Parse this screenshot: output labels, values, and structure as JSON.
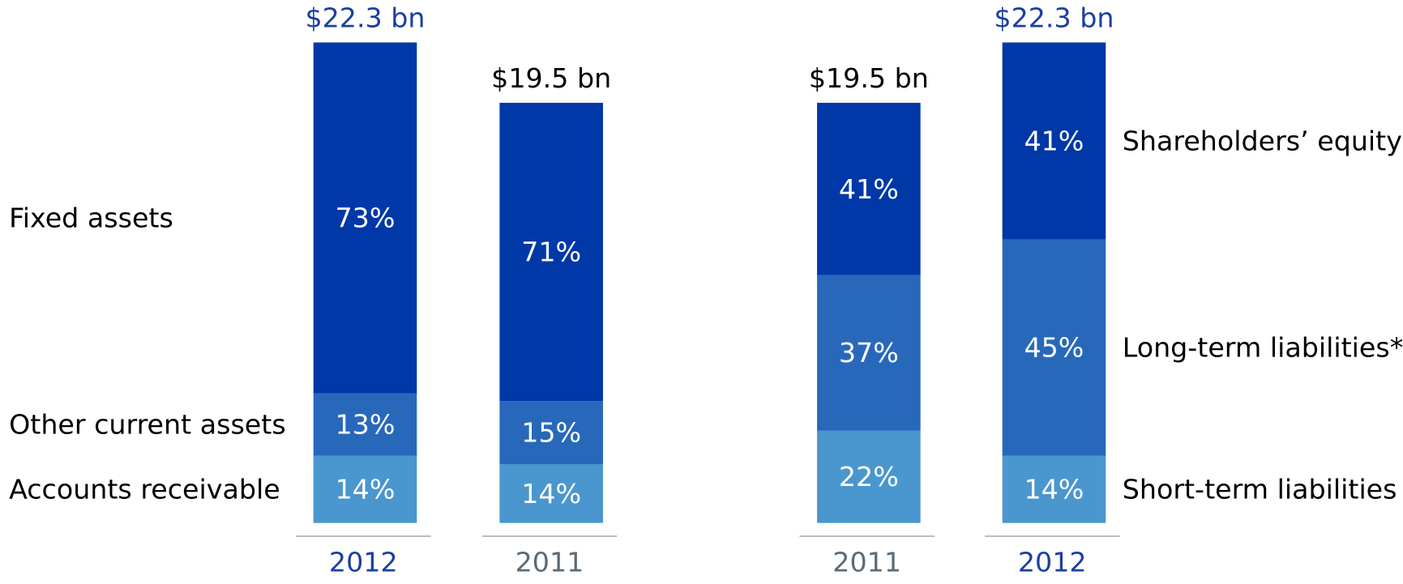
{
  "chart_data": [
    {
      "type": "stacked-bar",
      "legend": "left",
      "categories": [
        "2012",
        "2011"
      ],
      "category_colors": [
        "#1a3fa0",
        "#5a6a78"
      ],
      "totals": {
        "values": [
          22.3,
          19.5
        ],
        "value_labels": [
          "$22.3 bn",
          "$19.5 bn"
        ],
        "colors": [
          "#1a3fa0",
          "#000000"
        ]
      },
      "series": [
        {
          "name": "Accounts receivable",
          "color": "#4a96cf",
          "values": [
            14,
            14
          ],
          "value_labels": [
            "14%",
            "14%"
          ]
        },
        {
          "name": "Other current assets",
          "color": "#2868bb",
          "values": [
            13,
            15
          ],
          "value_labels": [
            "13%",
            "15%"
          ]
        },
        {
          "name": "Fixed assets",
          "color": "#0038a8",
          "values": [
            73,
            71
          ],
          "value_labels": [
            "73%",
            "71%"
          ]
        }
      ]
    },
    {
      "type": "stacked-bar",
      "legend": "right",
      "categories": [
        "2011",
        "2012"
      ],
      "category_colors": [
        "#5a6a78",
        "#1a3fa0"
      ],
      "totals": {
        "values": [
          19.5,
          22.3
        ],
        "value_labels": [
          "$19.5 bn",
          "$22.3 bn"
        ],
        "colors": [
          "#000000",
          "#1a3fa0"
        ]
      },
      "series": [
        {
          "name": "Short-term liabilities",
          "color": "#4a96cf",
          "values": [
            22,
            14
          ],
          "value_labels": [
            "22%",
            "14%"
          ]
        },
        {
          "name": "Long-term liabilities*",
          "color": "#2868bb",
          "values": [
            37,
            45
          ],
          "value_labels": [
            "37%",
            "45%"
          ]
        },
        {
          "name": "Shareholders’ equity",
          "color": "#0038a8",
          "values": [
            41,
            41
          ],
          "value_labels": [
            "41%",
            "41%"
          ]
        }
      ]
    }
  ]
}
